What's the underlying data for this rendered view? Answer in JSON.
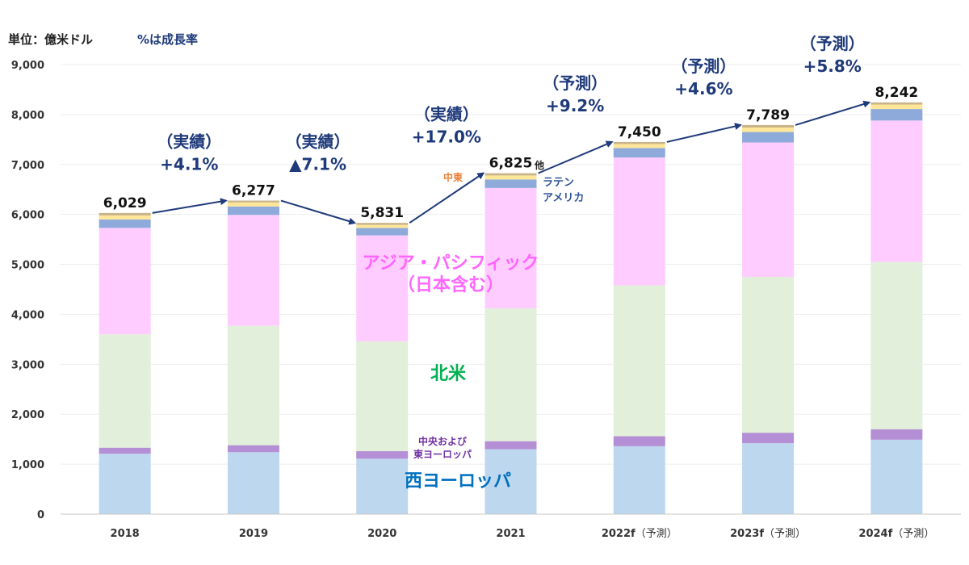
{
  "chart_data": {
    "type": "bar",
    "stacked": true,
    "unit_label": "単位：億米ドル",
    "growth_note": "%は成長率",
    "ylim": [
      0,
      9000
    ],
    "yticks": [
      "0",
      "1,000",
      "2,000",
      "3,000",
      "4,000",
      "5,000",
      "6,000",
      "7,000",
      "8,000",
      "9,000"
    ],
    "categories": [
      {
        "main": "2018",
        "sub": ""
      },
      {
        "main": "2019",
        "sub": ""
      },
      {
        "main": "2020",
        "sub": ""
      },
      {
        "main": "2021",
        "sub": ""
      },
      {
        "main": "2022f",
        "sub": "（予測）"
      },
      {
        "main": "2023f",
        "sub": "（予測）"
      },
      {
        "main": "2024f",
        "sub": "（予測）"
      }
    ],
    "totals": [
      "6,029",
      "6,277",
      "5,831",
      "6,825",
      "7,450",
      "7,789",
      "8,242"
    ],
    "series": [
      {
        "name": "西ヨーロッパ",
        "color": "#bdd7ee",
        "values": [
          1210,
          1240,
          1110,
          1300,
          1360,
          1420,
          1490
        ]
      },
      {
        "name": "中央および東ヨーロッパ",
        "color": "#b48fd6",
        "values": [
          120,
          140,
          150,
          160,
          200,
          210,
          210
        ]
      },
      {
        "name": "北米",
        "color": "#e2efda",
        "values": [
          2270,
          2390,
          2200,
          2660,
          3020,
          3120,
          3350
        ]
      },
      {
        "name": "アジア・パシフィック（日本含む）",
        "color": "#ffccff",
        "values": [
          2130,
          2220,
          2120,
          2410,
          2560,
          2690,
          2830
        ]
      },
      {
        "name": "ラテンアメリカ",
        "color": "#8eaadb",
        "values": [
          170,
          170,
          150,
          170,
          190,
          210,
          230
        ]
      },
      {
        "name": "中東",
        "color": "#ffe699",
        "values": [
          80,
          80,
          60,
          80,
          80,
          90,
          90
        ]
      },
      {
        "name": "他",
        "color": "#c9b48a",
        "values": [
          49,
          37,
          41,
          45,
          40,
          49,
          42
        ]
      }
    ],
    "growth": [
      {
        "line1": "（実績）",
        "line2": "+4.1%"
      },
      {
        "line1": "（実績）",
        "line2": "▲7.1%"
      },
      {
        "line1": "（実績）",
        "line2": "+17.0%"
      },
      {
        "line1": "（予測）",
        "line2": "+9.2%"
      },
      {
        "line1": "（予測）",
        "line2": "+4.6%"
      },
      {
        "line1": "（予測）",
        "line2": "+5.8%"
      }
    ],
    "labels": {
      "west_europe": "西ヨーロッパ",
      "ce_europe": [
        "中央および",
        "東ヨーロッパ"
      ],
      "north_america": "北米",
      "asia_pacific": [
        "アジア・パシフィック",
        "（日本含む）"
      ],
      "latin_america": [
        "ラテン",
        "アメリカ"
      ],
      "middle_east": "中東",
      "other": "他"
    },
    "label_colors": {
      "west_europe": "#0070c0",
      "ce_europe": "#7030a0",
      "north_america": "#00b050",
      "asia_pacific": "#ff66ff",
      "latin_america": "#2f5597",
      "middle_east": "#ed7d31",
      "other": "#222222"
    }
  }
}
